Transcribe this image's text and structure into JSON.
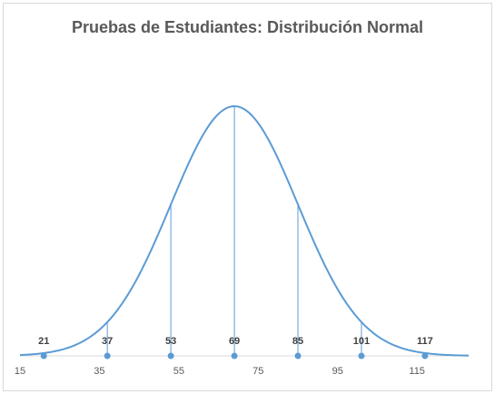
{
  "chart_data": {
    "type": "line",
    "title": "Pruebas de Estudiantes: Distribución Normal",
    "xlabel": "",
    "ylabel": "",
    "xlim": [
      15,
      128
    ],
    "x_ticks": [
      15,
      35,
      55,
      75,
      95,
      115
    ],
    "grid": false,
    "legend": "none",
    "curve": {
      "mean": 69,
      "sd": 16
    },
    "markers": [
      {
        "x": 21,
        "label": "21"
      },
      {
        "x": 37,
        "label": "37"
      },
      {
        "x": 53,
        "label": "53"
      },
      {
        "x": 69,
        "label": "69"
      },
      {
        "x": 85,
        "label": "85"
      },
      {
        "x": 101,
        "label": "101"
      },
      {
        "x": 117,
        "label": "117"
      }
    ],
    "line_color": "#5b9bd5",
    "axis_color": "#d9d9d9",
    "title_color": "#595959"
  }
}
